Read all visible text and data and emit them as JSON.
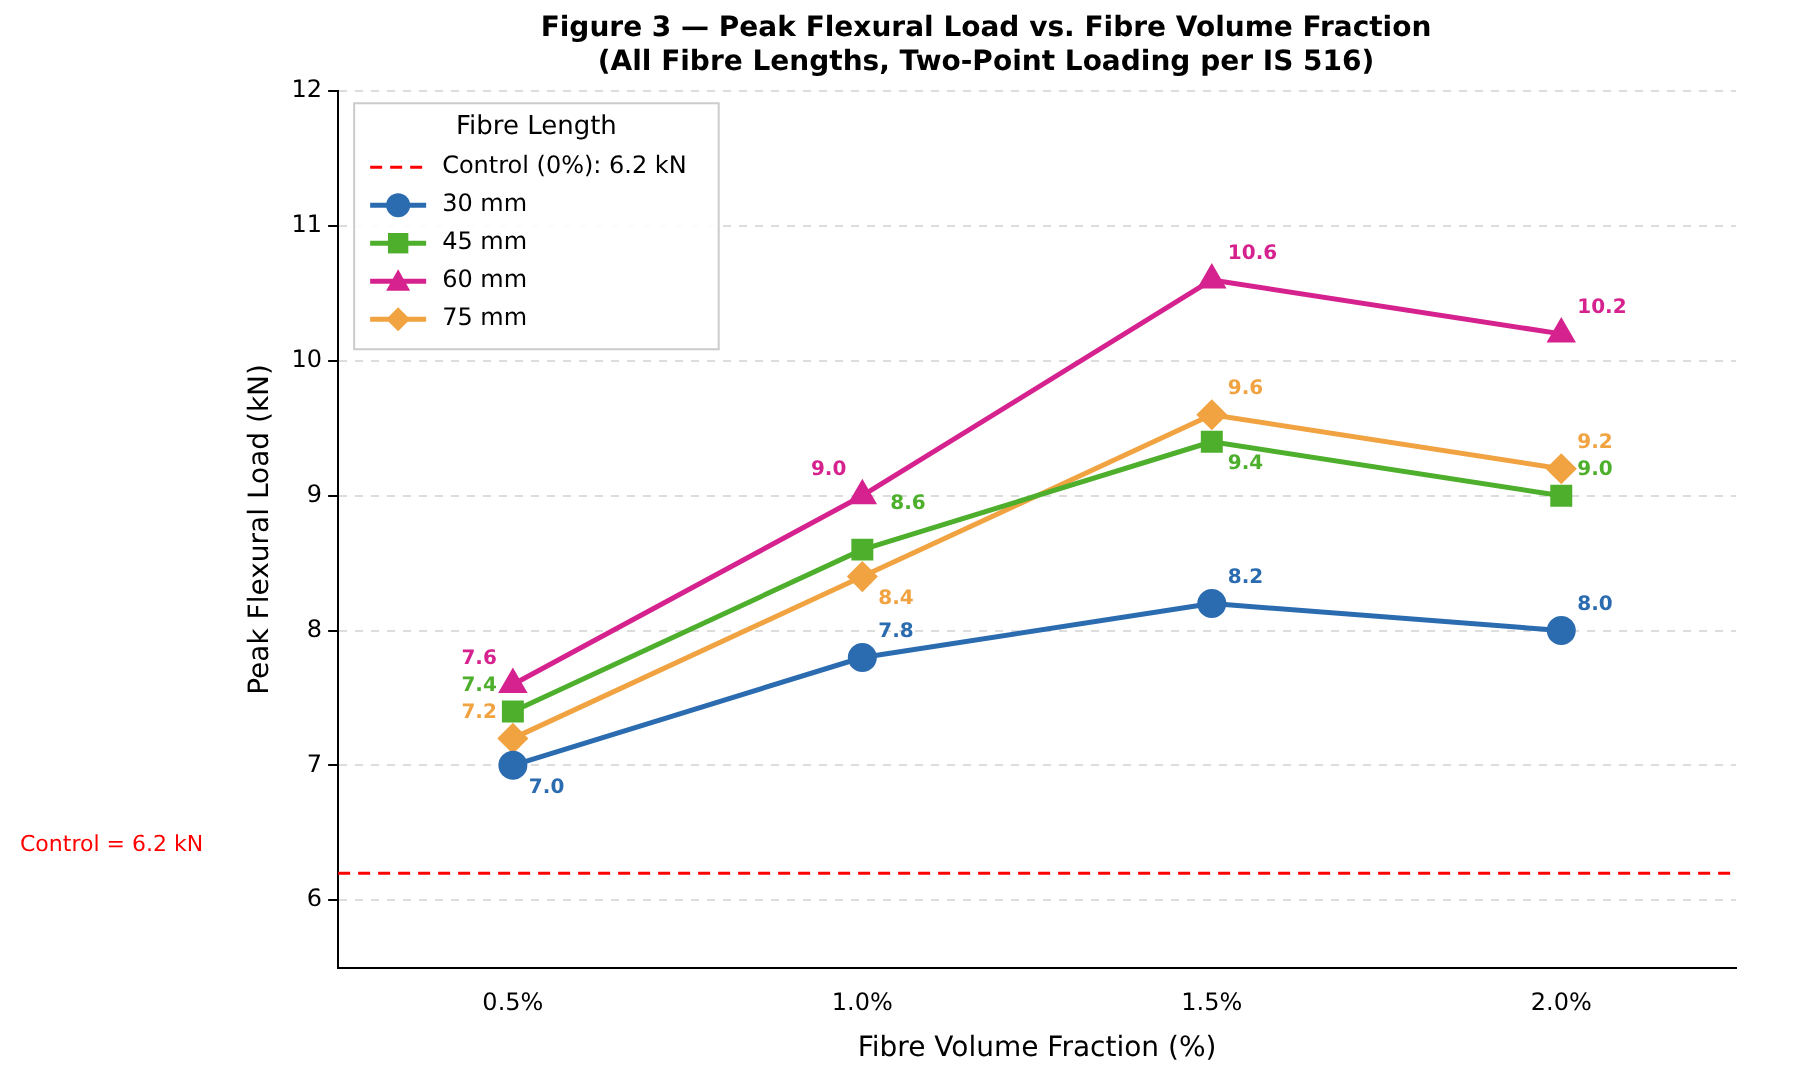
{
  "chart_data": {
    "type": "line",
    "title": "Figure 3 — Peak Flexural Load vs. Fibre Volume Fraction",
    "subtitle": "(All Fibre Lengths, Two-Point Loading per IS 516)",
    "xlabel": "Fibre Volume Fraction (%)",
    "ylabel": "Peak Flexural Load (kN)",
    "legend_title": "Fibre Length",
    "categories": [
      "0.5%",
      "1.0%",
      "1.5%",
      "2.0%"
    ],
    "series": [
      {
        "name": "30 mm",
        "color": "#2b6cb0",
        "marker": "circle",
        "values": [
          7.0,
          7.8,
          8.2,
          8.0
        ],
        "value_labels": [
          "7.0",
          "7.8",
          "8.2",
          "8.0"
        ]
      },
      {
        "name": "45 mm",
        "color": "#4daf2c",
        "marker": "square",
        "values": [
          7.4,
          8.6,
          9.4,
          9.0
        ],
        "value_labels": [
          "7.4",
          "8.6",
          "9.4",
          "9.0"
        ]
      },
      {
        "name": "60 mm",
        "color": "#d6228e",
        "marker": "triangle",
        "values": [
          7.6,
          9.0,
          10.6,
          10.2
        ],
        "value_labels": [
          "7.6",
          "9.0",
          "10.6",
          "10.2"
        ]
      },
      {
        "name": "75 mm",
        "color": "#f0a340",
        "marker": "diamond",
        "values": [
          7.2,
          8.4,
          9.6,
          9.2
        ],
        "value_labels": [
          "7.2",
          "8.4",
          "9.6",
          "9.2"
        ]
      }
    ],
    "ylim": [
      5.5,
      12
    ],
    "yticks": [
      6,
      7,
      8,
      9,
      10,
      11,
      12
    ],
    "ref_lines": [
      {
        "axis": "y",
        "value": 6.2,
        "label": "Control (0%): 6.2 kN",
        "color": "#ff0000",
        "line_style": "dashed"
      }
    ],
    "annotations": [
      "Control = 6.2 kN"
    ],
    "grid": "y",
    "legend": "top left",
    "line_style": "solid"
  }
}
